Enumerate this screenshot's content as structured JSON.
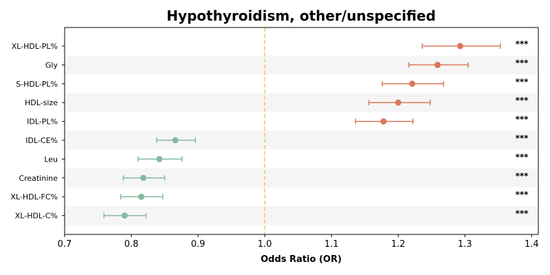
{
  "chart_data": {
    "type": "scatter",
    "subtype": "forest-plot",
    "title": "Hypothyroidism, other/unspecified",
    "xlabel": "Odds Ratio (OR)",
    "ylabel": "",
    "xlim": [
      0.7,
      1.41
    ],
    "xticks": [
      "0.7",
      "0.8",
      "0.9",
      "1.0",
      "1.1",
      "1.2",
      "1.3",
      "1.4"
    ],
    "reference_line": 1.0,
    "reference_line_color": "#f5c27a",
    "colors": {
      "positive": "#d9775a",
      "negative": "#86b89d",
      "band": "#f5f5f5"
    },
    "grid": false,
    "rows": [
      {
        "label": "XL-HDL-PL%",
        "or": 1.293,
        "lo": 1.236,
        "hi": 1.353,
        "sig": "***"
      },
      {
        "label": "Gly",
        "or": 1.259,
        "lo": 1.216,
        "hi": 1.305,
        "sig": "***"
      },
      {
        "label": "S-HDL-PL%",
        "or": 1.221,
        "lo": 1.176,
        "hi": 1.268,
        "sig": "***"
      },
      {
        "label": "HDL-size",
        "or": 1.2,
        "lo": 1.156,
        "hi": 1.248,
        "sig": "***"
      },
      {
        "label": "IDL-PL%",
        "or": 1.178,
        "lo": 1.136,
        "hi": 1.222,
        "sig": "***"
      },
      {
        "label": "IDL-CE%",
        "or": 0.866,
        "lo": 0.838,
        "hi": 0.896,
        "sig": "***"
      },
      {
        "label": "Leu",
        "or": 0.842,
        "lo": 0.81,
        "hi": 0.876,
        "sig": "***"
      },
      {
        "label": "Creatinine",
        "or": 0.818,
        "lo": 0.788,
        "hi": 0.85,
        "sig": "***"
      },
      {
        "label": "XL-HDL-FC%",
        "or": 0.815,
        "lo": 0.784,
        "hi": 0.847,
        "sig": "***"
      },
      {
        "label": "XL-HDL-C%",
        "or": 0.79,
        "lo": 0.759,
        "hi": 0.822,
        "sig": "***"
      }
    ]
  }
}
